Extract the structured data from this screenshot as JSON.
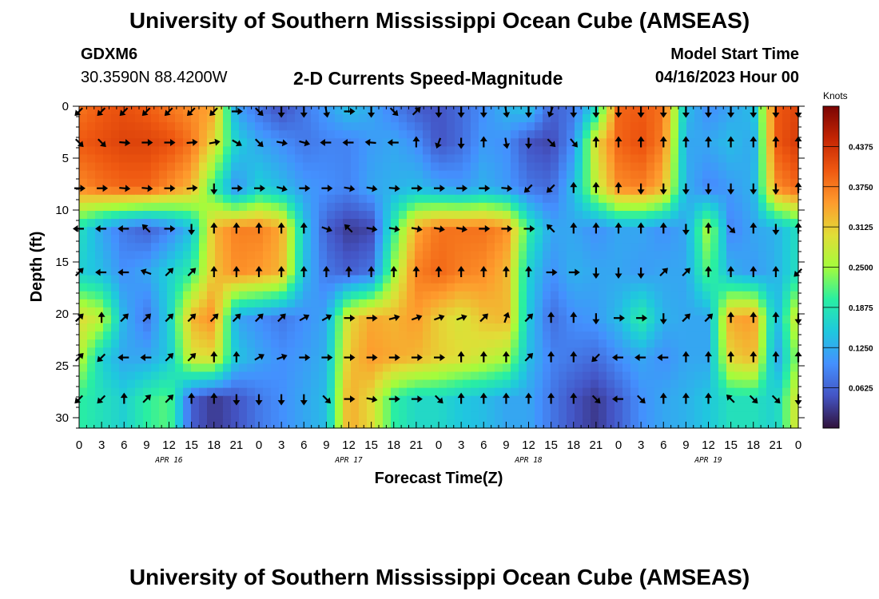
{
  "header": {
    "title": "University of Southern Mississippi Ocean Cube (AMSEAS)",
    "station_id": "GDXM6",
    "coordinates": "30.3590N  88.4200W",
    "plot_subtitle": "2-D Currents Speed-Magnitude",
    "start_label": "Model Start Time",
    "start_value": "04/16/2023 Hour 00"
  },
  "footer": {
    "title": "University of Southern Mississippi Ocean Cube (AMSEAS)"
  },
  "chart_data": {
    "type": "heatmap",
    "title": "2-D Currents Speed-Magnitude",
    "xlabel": "Forecast Time(Z)",
    "ylabel": "Depth (ft)",
    "colorbar_label": "Knots",
    "colorbar_ticks": [
      "0.0625",
      "0.1250",
      "0.1875",
      "0.2500",
      "0.3125",
      "0.3750",
      "0.4375"
    ],
    "colorbar_range": [
      0,
      0.5
    ],
    "x_hour_range": [
      0,
      96
    ],
    "x_ticks": [
      "0",
      "3",
      "6",
      "9",
      "12",
      "15",
      "18",
      "21",
      "0",
      "3",
      "6",
      "9",
      "12",
      "15",
      "18",
      "21",
      "0",
      "3",
      "6",
      "9",
      "12",
      "15",
      "18",
      "21",
      "0",
      "3",
      "6",
      "9",
      "12",
      "15",
      "18",
      "21",
      "0"
    ],
    "day_labels": [
      {
        "label": "APR 16",
        "hour": 12
      },
      {
        "label": "APR 17",
        "hour": 36
      },
      {
        "label": "APR 18",
        "hour": 60
      },
      {
        "label": "APR 19",
        "hour": 84
      }
    ],
    "y_ticks": [
      "0",
      "5",
      "10",
      "15",
      "20",
      "25",
      "30"
    ],
    "ylim": [
      0,
      31
    ],
    "depth_levels": [
      0.5,
      3.5,
      7.9,
      11.8,
      16.0,
      20.4,
      24.2,
      28.2
    ],
    "time_step_hours": 3,
    "speeds": [
      [
        0.38,
        0.4,
        0.41,
        0.4,
        0.38,
        0.36,
        0.34,
        0.12,
        0.08,
        0.05,
        0.08,
        0.11,
        0.14,
        0.12,
        0.09,
        0.06,
        0.05,
        0.07,
        0.1,
        0.13,
        0.14,
        0.06,
        0.08,
        0.18,
        0.39,
        0.4,
        0.38,
        0.14,
        0.1,
        0.12,
        0.14,
        0.4,
        0.42
      ],
      [
        0.4,
        0.41,
        0.42,
        0.42,
        0.41,
        0.38,
        0.3,
        0.16,
        0.12,
        0.1,
        0.08,
        0.09,
        0.09,
        0.11,
        0.12,
        0.1,
        0.05,
        0.07,
        0.11,
        0.1,
        0.05,
        0.04,
        0.1,
        0.3,
        0.39,
        0.41,
        0.37,
        0.12,
        0.12,
        0.14,
        0.12,
        0.4,
        0.43
      ],
      [
        0.36,
        0.38,
        0.39,
        0.39,
        0.36,
        0.33,
        0.2,
        0.1,
        0.16,
        0.14,
        0.11,
        0.1,
        0.09,
        0.12,
        0.13,
        0.14,
        0.12,
        0.11,
        0.13,
        0.11,
        0.08,
        0.07,
        0.14,
        0.27,
        0.36,
        0.37,
        0.33,
        0.13,
        0.09,
        0.11,
        0.13,
        0.36,
        0.39
      ],
      [
        0.18,
        0.12,
        0.08,
        0.06,
        0.09,
        0.14,
        0.33,
        0.37,
        0.37,
        0.34,
        0.15,
        0.06,
        0.03,
        0.04,
        0.2,
        0.34,
        0.38,
        0.38,
        0.38,
        0.36,
        0.2,
        0.12,
        0.12,
        0.1,
        0.12,
        0.12,
        0.1,
        0.12,
        0.26,
        0.09,
        0.12,
        0.13,
        0.18
      ],
      [
        0.16,
        0.14,
        0.1,
        0.12,
        0.16,
        0.2,
        0.32,
        0.36,
        0.35,
        0.33,
        0.14,
        0.08,
        0.06,
        0.08,
        0.25,
        0.37,
        0.39,
        0.37,
        0.36,
        0.33,
        0.16,
        0.1,
        0.13,
        0.12,
        0.12,
        0.11,
        0.12,
        0.12,
        0.22,
        0.13,
        0.11,
        0.13,
        0.18
      ],
      [
        0.3,
        0.27,
        0.13,
        0.08,
        0.16,
        0.33,
        0.36,
        0.12,
        0.1,
        0.08,
        0.1,
        0.12,
        0.3,
        0.34,
        0.33,
        0.35,
        0.31,
        0.29,
        0.32,
        0.33,
        0.15,
        0.07,
        0.1,
        0.11,
        0.14,
        0.2,
        0.13,
        0.12,
        0.12,
        0.34,
        0.35,
        0.13,
        0.3
      ],
      [
        0.27,
        0.16,
        0.12,
        0.12,
        0.15,
        0.29,
        0.3,
        0.15,
        0.12,
        0.1,
        0.11,
        0.13,
        0.32,
        0.35,
        0.34,
        0.33,
        0.31,
        0.3,
        0.28,
        0.26,
        0.14,
        0.09,
        0.08,
        0.07,
        0.1,
        0.12,
        0.1,
        0.12,
        0.12,
        0.31,
        0.33,
        0.11,
        0.25
      ],
      [
        0.2,
        0.18,
        0.16,
        0.2,
        0.22,
        0.06,
        0.03,
        0.05,
        0.08,
        0.1,
        0.12,
        0.14,
        0.34,
        0.3,
        0.2,
        0.17,
        0.17,
        0.15,
        0.14,
        0.12,
        0.12,
        0.08,
        0.05,
        0.03,
        0.06,
        0.1,
        0.12,
        0.13,
        0.15,
        0.18,
        0.18,
        0.16,
        0.3
      ]
    ],
    "directions_deg": [
      [
        225,
        225,
        225,
        225,
        225,
        225,
        225,
        90,
        135,
        180,
        180,
        170,
        90,
        180,
        135,
        45,
        180,
        180,
        180,
        170,
        180,
        200,
        180,
        180,
        180,
        180,
        180,
        180,
        180,
        180,
        180,
        180,
        180
      ],
      [
        135,
        135,
        95,
        90,
        90,
        85,
        80,
        120,
        135,
        100,
        105,
        270,
        270,
        275,
        270,
        0,
        200,
        180,
        0,
        170,
        180,
        135,
        140,
        0,
        0,
        0,
        0,
        0,
        0,
        0,
        0,
        0,
        0
      ],
      [
        90,
        90,
        95,
        95,
        90,
        85,
        180,
        90,
        90,
        105,
        90,
        90,
        100,
        100,
        95,
        90,
        90,
        90,
        90,
        95,
        225,
        225,
        0,
        0,
        0,
        180,
        180,
        180,
        180,
        180,
        180,
        180,
        0
      ],
      [
        270,
        270,
        270,
        315,
        90,
        180,
        0,
        0,
        0,
        0,
        0,
        110,
        315,
        100,
        100,
        100,
        100,
        100,
        90,
        90,
        90,
        315,
        0,
        0,
        0,
        0,
        0,
        180,
        0,
        135,
        0,
        180,
        0
      ],
      [
        45,
        270,
        270,
        290,
        45,
        45,
        0,
        0,
        0,
        0,
        0,
        0,
        0,
        0,
        0,
        0,
        0,
        0,
        0,
        0,
        0,
        90,
        90,
        180,
        180,
        180,
        45,
        45,
        0,
        0,
        0,
        0,
        225
      ],
      [
        45,
        0,
        45,
        45,
        45,
        45,
        45,
        45,
        45,
        45,
        60,
        60,
        90,
        90,
        75,
        70,
        70,
        70,
        45,
        20,
        45,
        0,
        0,
        180,
        90,
        90,
        180,
        45,
        45,
        0,
        0,
        0,
        180
      ],
      [
        45,
        225,
        270,
        270,
        45,
        45,
        0,
        0,
        60,
        70,
        90,
        90,
        90,
        90,
        90,
        90,
        90,
        0,
        0,
        0,
        45,
        0,
        0,
        225,
        270,
        270,
        270,
        0,
        0,
        0,
        0,
        0,
        0
      ],
      [
        225,
        225,
        0,
        45,
        45,
        0,
        0,
        180,
        180,
        180,
        180,
        135,
        90,
        100,
        90,
        90,
        135,
        0,
        0,
        0,
        0,
        0,
        0,
        135,
        270,
        135,
        0,
        0,
        0,
        315,
        135,
        135,
        180
      ]
    ]
  }
}
